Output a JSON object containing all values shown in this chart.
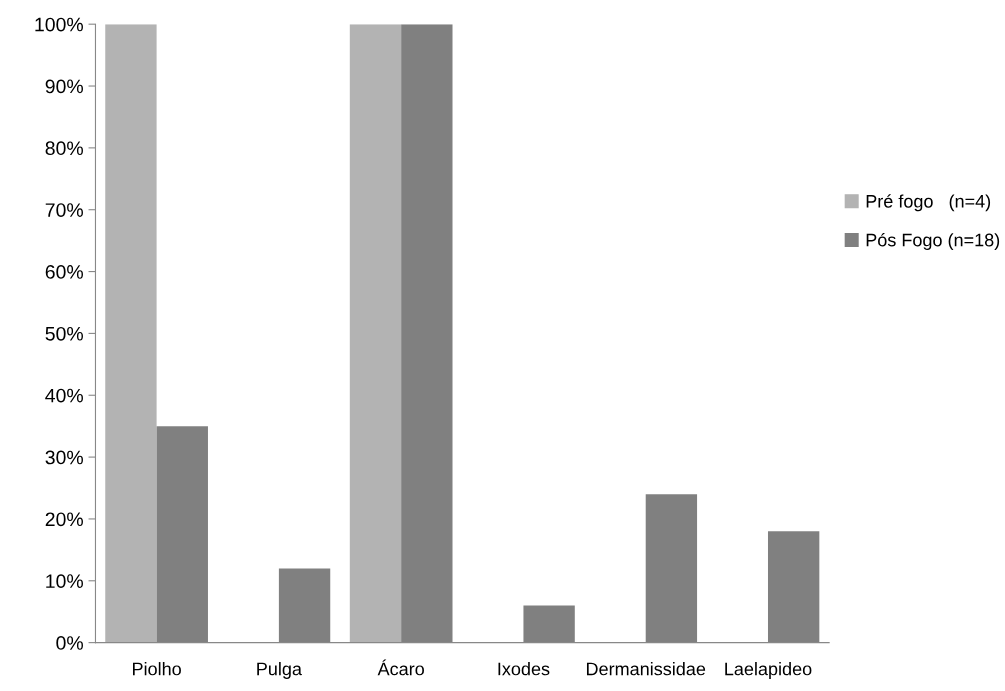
{
  "chart_data": {
    "type": "bar",
    "categories": [
      "Piolho",
      "Pulga",
      "Ácaro",
      "Ixodes",
      "Dermanissidae",
      "Laelapideo"
    ],
    "series": [
      {
        "name": "Pré fogo   (n=4)",
        "color": "#b3b3b3",
        "values": [
          100,
          0,
          100,
          0,
          0,
          0
        ]
      },
      {
        "name": "Pós Fogo (n=18)",
        "color": "#808080",
        "values": [
          35,
          12,
          100,
          6,
          24,
          18
        ]
      }
    ],
    "ylim": [
      0,
      100
    ],
    "yticks": [
      {
        "value": 0,
        "label": "0%"
      },
      {
        "value": 10,
        "label": "10%"
      },
      {
        "value": 20,
        "label": "20%"
      },
      {
        "value": 30,
        "label": "30%"
      },
      {
        "value": 40,
        "label": "40%"
      },
      {
        "value": 50,
        "label": "50%"
      },
      {
        "value": 60,
        "label": "60%"
      },
      {
        "value": 70,
        "label": "70%"
      },
      {
        "value": 80,
        "label": "80%"
      },
      {
        "value": 90,
        "label": "90%"
      },
      {
        "value": 100,
        "label": "100%"
      }
    ],
    "legend": "right",
    "grid": false
  }
}
